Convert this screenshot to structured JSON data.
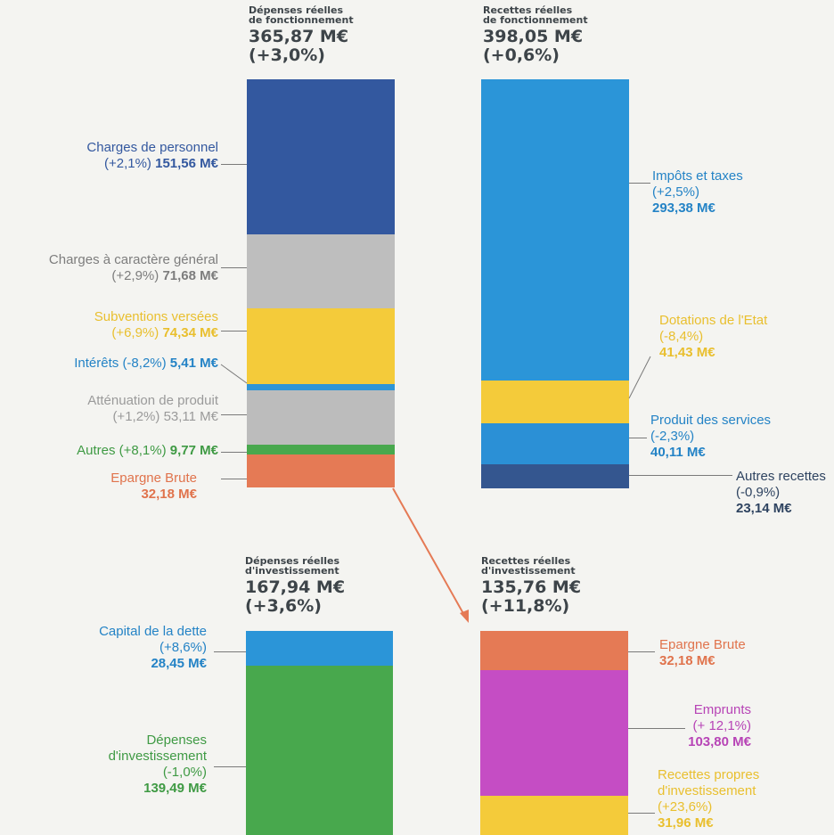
{
  "chart_data": [
    {
      "type": "bar",
      "stacked": true,
      "title": "Dépenses réelles de fonctionnement",
      "total": "365,87 M€",
      "change": "(+3,0%)",
      "segments": [
        {
          "name": "Charges de personnel",
          "change": "(+2,1%)",
          "value": 151.56,
          "value_label": "151,56 M€",
          "color": "#33589f"
        },
        {
          "name": "Charges à caractère général",
          "change": "(+2,9%)",
          "value": 71.68,
          "value_label": "71,68 M€",
          "color": "#bebebe"
        },
        {
          "name": "Subventions versées",
          "change": "(+6,9%)",
          "value": 74.34,
          "value_label": "74,34 M€",
          "color": "#f4cb3a"
        },
        {
          "name": "Intérêts",
          "change": "(-8,2%)",
          "value": 5.41,
          "value_label": "5,41 M€",
          "color": "#2f95d6"
        },
        {
          "name": "Atténuation de produit",
          "change": "(+1,2%)",
          "value": 53.11,
          "value_label": "53,11 M€",
          "color": "#bcbcbc"
        },
        {
          "name": "Autres",
          "change": "(+8,1%)",
          "value": 9.77,
          "value_label": "9,77 M€",
          "color": "#48a84d"
        },
        {
          "name": "Epargne Brute",
          "change": "",
          "value": 32.18,
          "value_label": "32,18 M€",
          "color": "#e57a55"
        }
      ]
    },
    {
      "type": "bar",
      "stacked": true,
      "title": "Recettes réelles de fonctionnement",
      "total": "398,05 M€",
      "change": "(+0,6%)",
      "segments": [
        {
          "name": "Impôts et taxes",
          "change": "(+2,5%)",
          "value": 293.38,
          "value_label": "293,38 M€",
          "color": "#2b95d8"
        },
        {
          "name": "Dotations de l'Etat",
          "change": "(-8,4%)",
          "value": 41.43,
          "value_label": "41,43 M€",
          "color": "#f4cb3a"
        },
        {
          "name": "Produit des services",
          "change": "(-2,3%)",
          "value": 40.11,
          "value_label": "40,11 M€",
          "color": "#2b90d6"
        },
        {
          "name": "Autres recettes",
          "change": "(-0,9%)",
          "value": 23.14,
          "value_label": "23,14 M€",
          "color": "#34568f"
        }
      ]
    },
    {
      "type": "bar",
      "stacked": true,
      "title": "Dépenses réelles d'investissement",
      "total": "167,94 M€",
      "change": "(+3,6%)",
      "segments": [
        {
          "name": "Capital de la dette",
          "change": "(+8,6%)",
          "value": 28.45,
          "value_label": "28,45 M€",
          "color": "#2b95d8"
        },
        {
          "name": "Dépenses d'investissement",
          "change": "(-1,0%)",
          "value": 139.49,
          "value_label": "139,49 M€",
          "color": "#48a84d"
        }
      ]
    },
    {
      "type": "bar",
      "stacked": true,
      "title": "Recettes réelles d'investissement",
      "total": "135,76 M€",
      "change": "(+11,8%)",
      "segments": [
        {
          "name": "Epargne Brute",
          "change": "",
          "value": 32.18,
          "value_label": "32,18 M€",
          "color": "#e57a55"
        },
        {
          "name": "Emprunts",
          "change": "(+ 12,1%)",
          "value": 103.8,
          "value_label": "103,80 M€",
          "color": "#c54dc4"
        },
        {
          "name": "Recettes propres d'investissement",
          "change": "(+23,6%)",
          "value": 31.96,
          "value_label": "31,96 M€",
          "color": "#f4cb3a"
        }
      ]
    }
  ],
  "texts": {
    "dep_fonc_t1": "Dépenses réelles",
    "dep_fonc_t2": "de fonctionnement",
    "rec_fonc_t1": "Recettes réelles",
    "rec_fonc_t2": "de fonctionnement",
    "dep_inv_t1": "Dépenses réelles",
    "dep_inv_t2": "d'investissement",
    "rec_inv_t1": "Recettes réelles",
    "rec_inv_t2": "d'investissement",
    "personnel": "Charges de personnel",
    "general": "Charges à caractère général",
    "subv": "Subventions versées",
    "interets": "Intérêts",
    "attenuation": "Atténuation de produit",
    "autres": "Autres",
    "epargne": "Epargne Brute",
    "impots": "Impôts et taxes",
    "dotations": "Dotations de l'Etat",
    "services": "Produit des services",
    "autres_rec": "Autres recettes",
    "capital1": "Capital de la dette",
    "dep_inv1": "Dépenses",
    "dep_inv2": "d'investissement",
    "emprunts": "Emprunts",
    "rec_propres1": "Recettes propres",
    "rec_propres2": "d'investissement"
  }
}
